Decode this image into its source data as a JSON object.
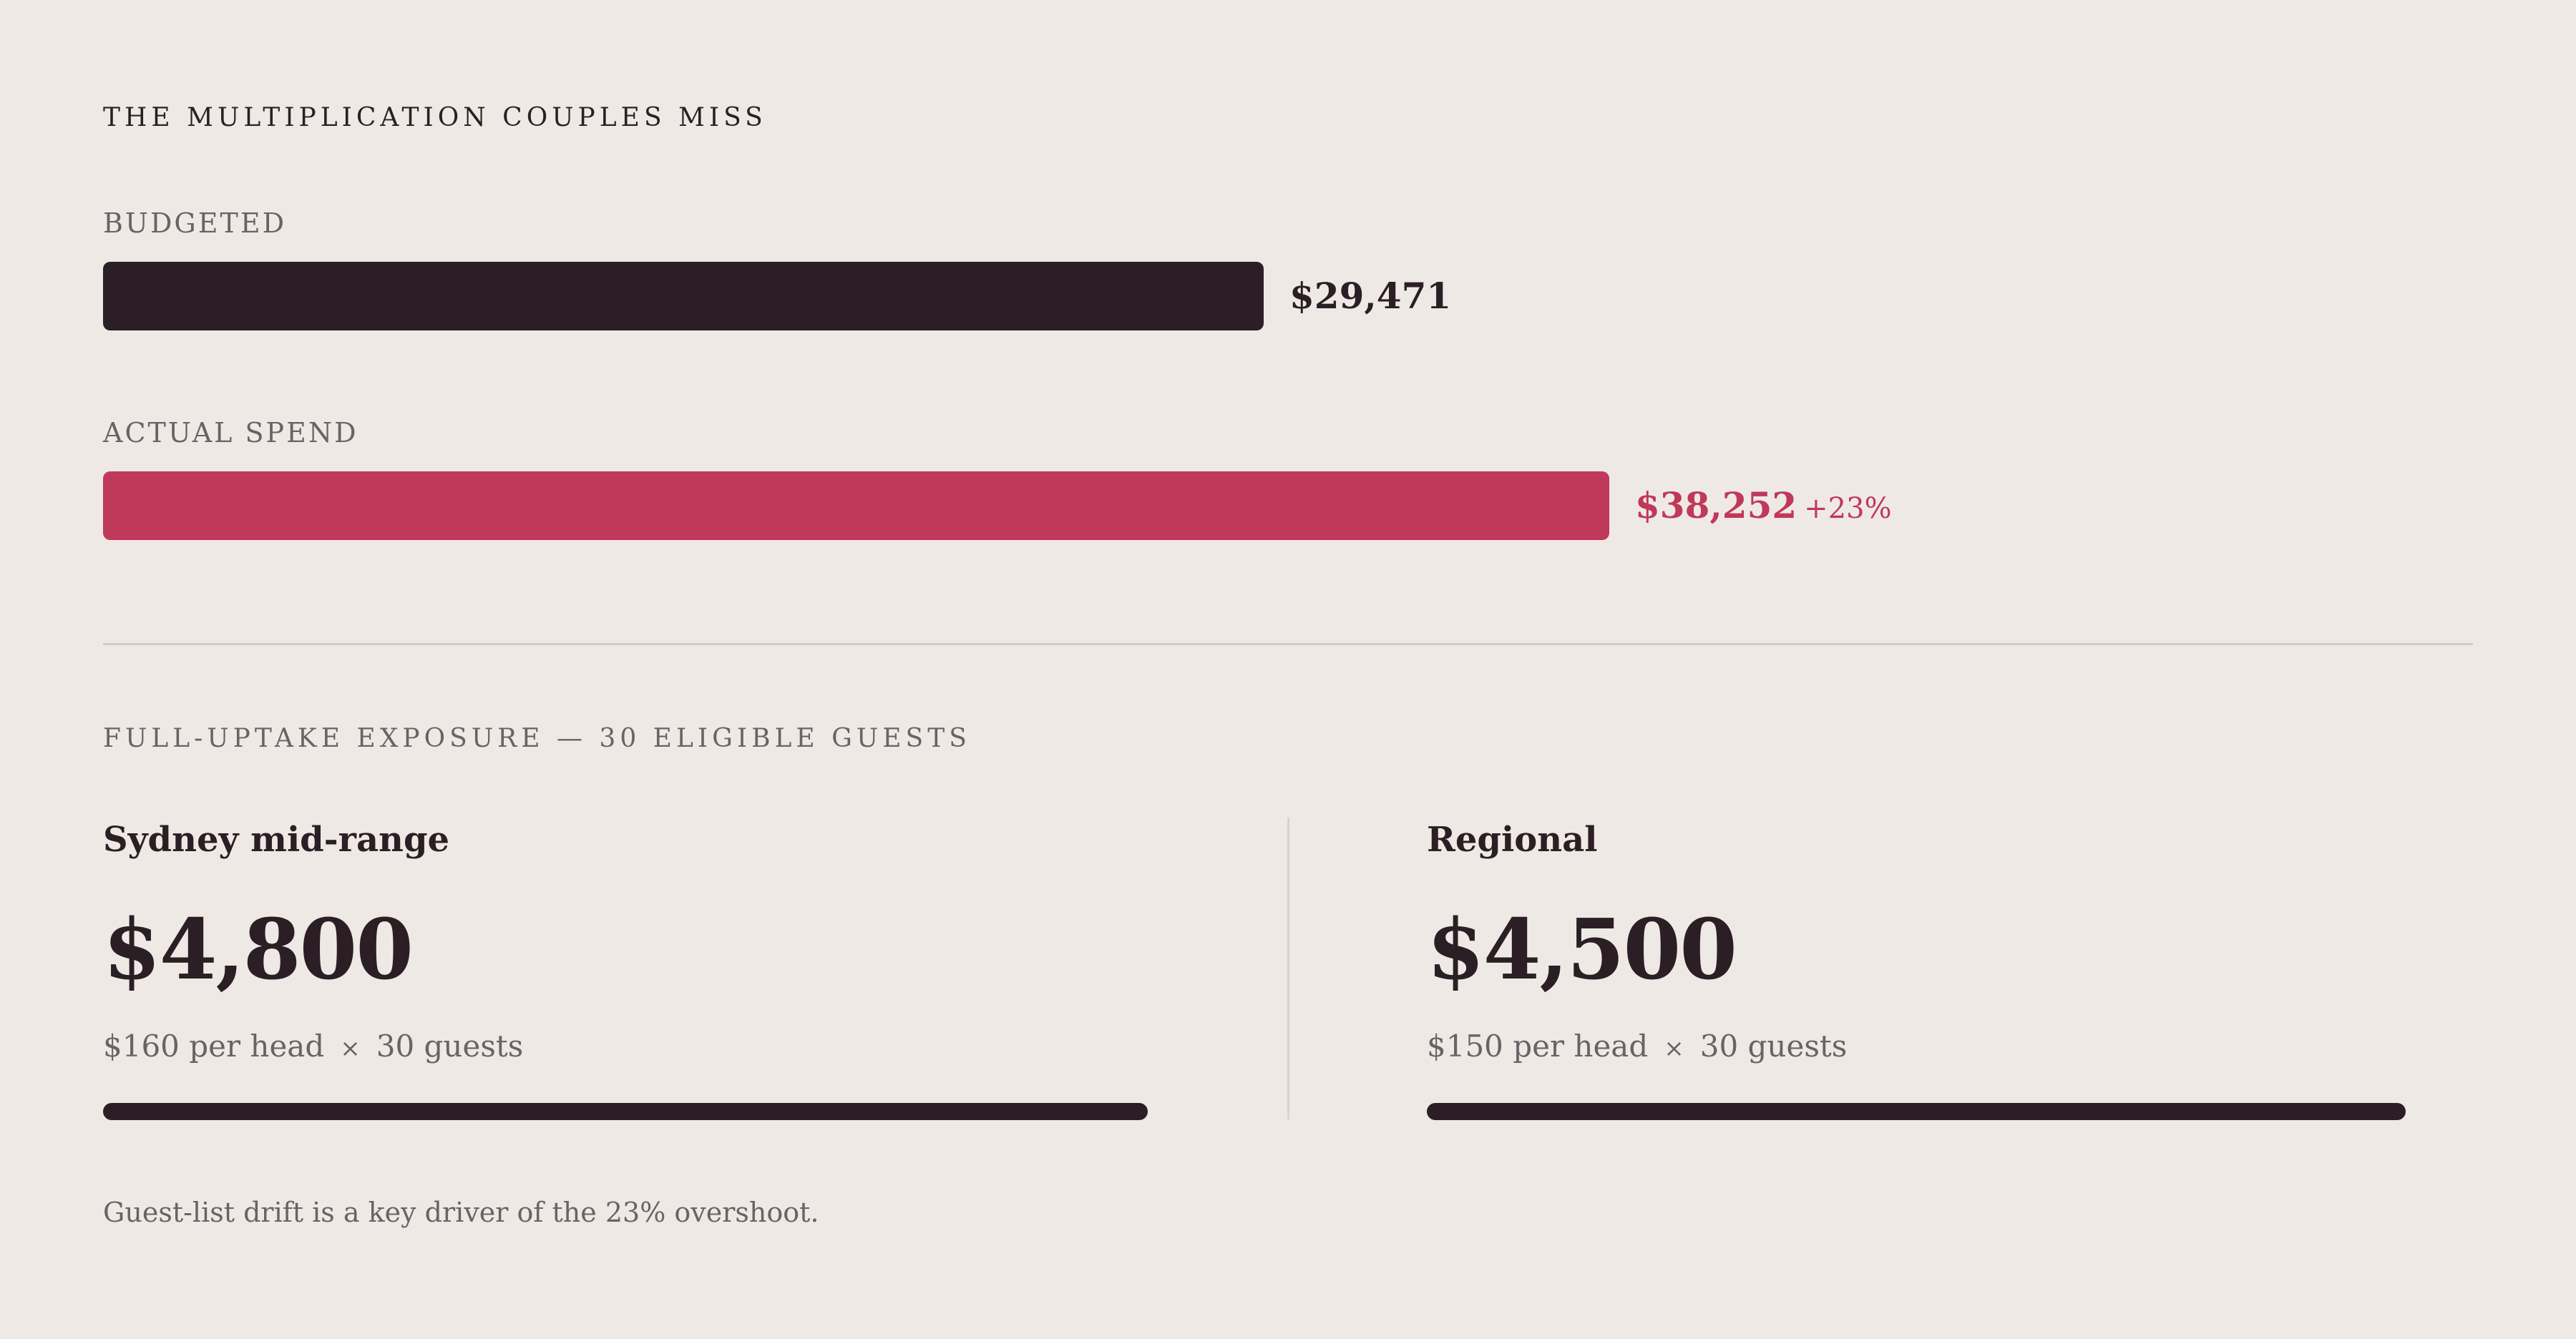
{
  "title": "THE MULTIPLICATION COUPLES MISS",
  "colors": {
    "background": "#efe9e5",
    "ink": "#2b1f25",
    "accent": "#c0385a",
    "muted": "#6b6166"
  },
  "chart_data": {
    "type": "bar",
    "orientation": "horizontal",
    "categories": [
      "BUDGETED",
      "ACTUAL SPEND"
    ],
    "values": [
      29471,
      38252
    ],
    "value_labels": [
      "$29,471",
      "$38,252"
    ],
    "annotations": [
      "",
      "+23%"
    ],
    "legend": "none",
    "grid": false
  },
  "exposure": {
    "title": "FULL-UPTAKE EXPOSURE — 30 ELIGIBLE GUESTS",
    "cards": [
      {
        "title": "Sydney mid-range",
        "amount": "$4,800",
        "value": 4800,
        "per_head": "$160 per head",
        "times": "×",
        "guests": "30 guests"
      },
      {
        "title": "Regional",
        "amount": "$4,500",
        "value": 4500,
        "per_head": "$150 per head",
        "times": "×",
        "guests": "30 guests"
      }
    ]
  },
  "footnote": "Guest-list drift is a key driver of the 23% overshoot."
}
